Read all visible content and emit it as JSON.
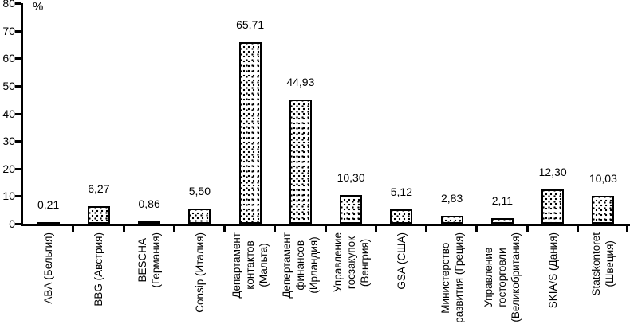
{
  "chart_data": {
    "type": "bar",
    "title": "",
    "xlabel": "",
    "ylabel": "%",
    "ylim": [
      0,
      80
    ],
    "ytick_step": 10,
    "grid": false,
    "legend": "none",
    "bar_style": {
      "fill": "stipple-dots",
      "dot_color": "#000000",
      "background": "#ffffff",
      "border_color": "#000000"
    },
    "decimal_separator": ",",
    "categories": [
      "ABA (Бельгия)",
      "BBG (Австрия)",
      "BESCHA (Германия)",
      "Consip (Италия)",
      "Департамент контактов (Мальта)",
      "Депертамент финансов (Ирландия)",
      "Управление госзакупок (Венгрия)",
      "GSA (США)",
      "Министерство развития (Греция)",
      "Управление госторговли (Великобритания)",
      "SKIA/S (Дания)",
      "Statskontoret (Швеция)"
    ],
    "category_label_lines": [
      [
        "ABA (Бельгия)"
      ],
      [
        "BBG (Австрия)"
      ],
      [
        "BESCHA",
        "(Германия)"
      ],
      [
        "Consip (Италия)"
      ],
      [
        "Департамент",
        "контактов",
        "(Мальта)"
      ],
      [
        "Депертамент",
        "финансов",
        "(Ирландия)"
      ],
      [
        "Управление",
        "госзакупок",
        "(Венгрия)"
      ],
      [
        "GSA (США)"
      ],
      [
        "Министерство",
        "развития (Греция)"
      ],
      [
        "Управление",
        "госторговли",
        "(Великобритания)"
      ],
      [
        "SKIA/S (Дания)"
      ],
      [
        "Statskontoret",
        "(Швеция)"
      ]
    ],
    "values": [
      0.21,
      6.27,
      0.86,
      5.5,
      65.71,
      44.93,
      10.3,
      5.12,
      2.83,
      2.11,
      12.3,
      10.03
    ],
    "value_labels": [
      "0,21",
      "6,27",
      "0,86",
      "5,50",
      "65,71",
      "44,93",
      "10,30",
      "5,12",
      "2,83",
      "2,11",
      "12,30",
      "10,03"
    ]
  }
}
